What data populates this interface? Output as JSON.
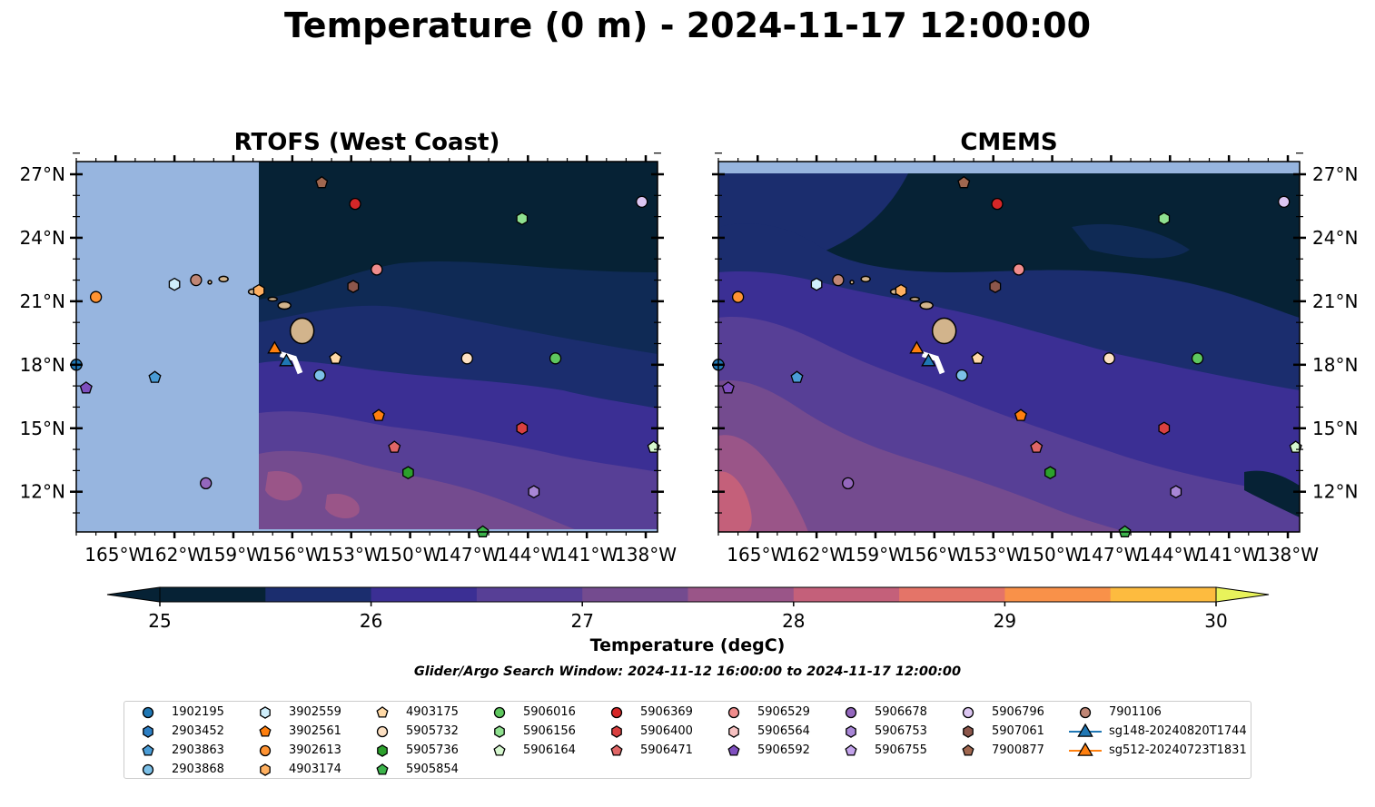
{
  "title": "Temperature (0 m) - 2024-11-17 12:00:00",
  "maps": [
    {
      "title": "RTOFS (West Coast)",
      "model": "rtofs"
    },
    {
      "title": "CMEMS",
      "model": "cmems"
    }
  ],
  "axes": {
    "lon_ticks": [
      "165°W",
      "162°W",
      "159°W",
      "156°W",
      "153°W",
      "150°W",
      "147°W",
      "144°W",
      "141°W",
      "138°W"
    ],
    "lon_values": [
      -165,
      -162,
      -159,
      -156,
      -153,
      -150,
      -147,
      -144,
      -141,
      -138
    ],
    "lat_ticks": [
      "27°N",
      "24°N",
      "21°N",
      "18°N",
      "15°N",
      "12°N"
    ],
    "lat_values": [
      27,
      24,
      21,
      18,
      15,
      12
    ],
    "lon_range": [
      -167,
      -137.4
    ],
    "lat_range": [
      10.1,
      27.6
    ]
  },
  "colorbar": {
    "label": "Temperature (degC)",
    "tick_labels": [
      "25",
      "26",
      "27",
      "28",
      "29",
      "30"
    ],
    "range": [
      25,
      30
    ],
    "step": 0.5,
    "colors": [
      "#062235",
      "#1b2d6e",
      "#3b2f94",
      "#573f96",
      "#744b8f",
      "#9a5588",
      "#c4607a",
      "#e47468",
      "#f99149",
      "#fdbb3f",
      "#e8f35b"
    ]
  },
  "search_window": "Glider/Argo Search Window: 2024-11-12 16:00:00 to 2024-11-17 12:00:00",
  "floats": [
    {
      "id": "1902195",
      "marker": "circle",
      "color": "#1f77b4",
      "lon": -167.0,
      "lat": 18.0
    },
    {
      "id": "2903452",
      "marker": "hexagon",
      "color": "#2d7fc4",
      "lon": null,
      "lat": null
    },
    {
      "id": "2903863",
      "marker": "pentagon",
      "color": "#4a9cd6",
      "lon": -163.0,
      "lat": 17.4
    },
    {
      "id": "2903868",
      "marker": "circle",
      "color": "#7cc0e8",
      "lon": -154.6,
      "lat": 17.5
    },
    {
      "id": "3902559",
      "marker": "hexagon",
      "color": "#cfeefb",
      "lon": -162.0,
      "lat": 21.8
    },
    {
      "id": "3902561",
      "marker": "pentagon",
      "color": "#ff7f0e",
      "lon": -151.6,
      "lat": 15.6
    },
    {
      "id": "3902613",
      "marker": "circle",
      "color": "#ff9332",
      "lon": -166.0,
      "lat": 21.2
    },
    {
      "id": "4903174",
      "marker": "hexagon",
      "color": "#ffb060",
      "lon": -157.7,
      "lat": 21.5
    },
    {
      "id": "4903175",
      "marker": "pentagon",
      "color": "#ffd9a6",
      "lon": -153.8,
      "lat": 18.3
    },
    {
      "id": "5905732",
      "marker": "circle",
      "color": "#fde0c2",
      "lon": -147.1,
      "lat": 18.3
    },
    {
      "id": "5905736",
      "marker": "hexagon",
      "color": "#2ca02c",
      "lon": -150.1,
      "lat": 12.9
    },
    {
      "id": "5905854",
      "marker": "pentagon",
      "color": "#3cb44b",
      "lon": -146.3,
      "lat": 10.1
    },
    {
      "id": "5906016",
      "marker": "circle",
      "color": "#5ec75e",
      "lon": -142.6,
      "lat": 18.3
    },
    {
      "id": "5906156",
      "marker": "hexagon",
      "color": "#8fe08f",
      "lon": -144.3,
      "lat": 24.9
    },
    {
      "id": "5906164",
      "marker": "pentagon",
      "color": "#d6f7cf",
      "lon": -137.6,
      "lat": 14.1
    },
    {
      "id": "5906369",
      "marker": "circle",
      "color": "#d62728",
      "lon": -152.8,
      "lat": 25.6
    },
    {
      "id": "5906400",
      "marker": "hexagon",
      "color": "#d94040",
      "lon": -144.3,
      "lat": 15.0
    },
    {
      "id": "5906471",
      "marker": "pentagon",
      "color": "#e06666",
      "lon": -150.8,
      "lat": 14.1
    },
    {
      "id": "5906529",
      "marker": "circle",
      "color": "#f08c8c",
      "lon": -151.7,
      "lat": 22.5
    },
    {
      "id": "5906564",
      "marker": "hexagon",
      "color": "#f7c1c1",
      "lon": null,
      "lat": null
    },
    {
      "id": "5906592",
      "marker": "pentagon",
      "color": "#7f4fbf",
      "lon": -166.5,
      "lat": 16.9
    },
    {
      "id": "5906678",
      "marker": "circle",
      "color": "#9467bd",
      "lon": -160.4,
      "lat": 12.4
    },
    {
      "id": "5906753",
      "marker": "hexagon",
      "color": "#a886d6",
      "lon": -143.7,
      "lat": 12.0
    },
    {
      "id": "5906755",
      "marker": "pentagon",
      "color": "#c3a3eb",
      "lon": null,
      "lat": null
    },
    {
      "id": "5906796",
      "marker": "circle",
      "color": "#dcc6f2",
      "lon": -138.2,
      "lat": 25.7
    },
    {
      "id": "5907061",
      "marker": "hexagon",
      "color": "#8c564b",
      "lon": -152.9,
      "lat": 21.7
    },
    {
      "id": "7900877",
      "marker": "pentagon",
      "color": "#a0674f",
      "lon": -154.5,
      "lat": 26.6
    },
    {
      "id": "7901106",
      "marker": "circle",
      "color": "#c08675",
      "lon": -160.9,
      "lat": 22.0
    },
    {
      "id": "sg148-20240820T1744",
      "marker": "triangle",
      "color": "#1f77b4",
      "lon": -156.3,
      "lat": 18.2
    },
    {
      "id": "sg512-20240723T1831",
      "marker": "triangle",
      "color": "#ff7f0e",
      "lon": -156.9,
      "lat": 18.8
    }
  ]
}
